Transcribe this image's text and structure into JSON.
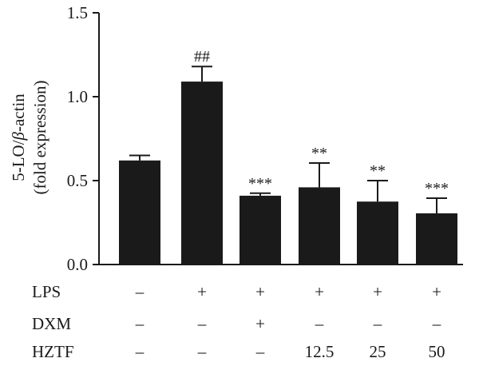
{
  "chart_data": {
    "type": "bar",
    "title": "",
    "xlabel": "",
    "ylabel_parts": [
      "5-LO/",
      "β",
      "-actin"
    ],
    "ylabel_line2": "(fold expression)",
    "ylim": [
      0,
      1.5
    ],
    "yticks": [
      "0.0",
      "0.5",
      "1.0",
      "1.5"
    ],
    "ytick_values": [
      0.0,
      0.5,
      1.0,
      1.5
    ],
    "grid": false,
    "legend": "none",
    "values": [
      0.62,
      1.09,
      0.41,
      0.46,
      0.375,
      0.305
    ],
    "errors": [
      0.03,
      0.09,
      0.015,
      0.145,
      0.125,
      0.09
    ],
    "annotations": [
      "",
      "##",
      "***",
      "**",
      "**",
      "***"
    ],
    "conditions": [
      {
        "label": "LPS",
        "cells": [
          "–",
          "+",
          "+",
          "+",
          "+",
          "+"
        ]
      },
      {
        "label": "DXM",
        "cells": [
          "–",
          "–",
          "+",
          "–",
          "–",
          "–"
        ]
      },
      {
        "label": "HZTF",
        "cells": [
          "–",
          "–",
          "–",
          "12.5",
          "25",
          "50"
        ]
      }
    ],
    "bar_color": "#1a1a1a"
  }
}
